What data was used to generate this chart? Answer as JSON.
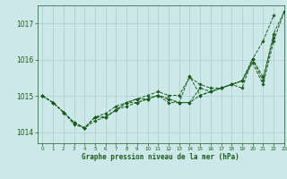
{
  "title": "Graphe pression niveau de la mer (hPa)",
  "background_color": "#cce8e8",
  "grid_color": "#aacccc",
  "line_color": "#1a5c1a",
  "xlim": [
    -0.5,
    23
  ],
  "ylim": [
    1013.7,
    1017.5
  ],
  "yticks": [
    1014,
    1015,
    1016,
    1017
  ],
  "xticks": [
    0,
    1,
    2,
    3,
    4,
    5,
    6,
    7,
    8,
    9,
    10,
    11,
    12,
    13,
    14,
    15,
    16,
    17,
    18,
    19,
    20,
    21,
    22,
    23
  ],
  "series": [
    [
      1015.0,
      1014.82,
      1014.55,
      1014.27,
      1014.12,
      1014.42,
      1014.42,
      1014.62,
      1014.72,
      1014.82,
      1014.92,
      1015.02,
      1014.92,
      1014.82,
      1015.55,
      1015.02,
      1015.12,
      1015.22,
      1015.32,
      1015.22,
      1016.02,
      1016.52,
      1017.22,
      null
    ],
    [
      1015.0,
      1014.82,
      1014.55,
      1014.27,
      1014.12,
      1014.42,
      1014.42,
      1014.62,
      1014.82,
      1014.92,
      1014.92,
      1015.02,
      1014.82,
      1014.82,
      1014.82,
      1015.22,
      1015.12,
      1015.22,
      1015.32,
      1015.42,
      1015.92,
      1015.32,
      1016.52,
      1017.32
    ],
    [
      1015.0,
      1014.82,
      1014.55,
      1014.27,
      1014.12,
      1014.42,
      1014.52,
      1014.72,
      1014.82,
      1014.92,
      1015.02,
      1015.12,
      1015.02,
      1015.02,
      1015.52,
      1015.32,
      1015.22,
      1015.22,
      1015.32,
      1015.42,
      1016.02,
      1015.52,
      1016.62,
      null
    ],
    [
      1015.0,
      1014.82,
      1014.55,
      1014.22,
      1014.12,
      1014.32,
      1014.42,
      1014.62,
      1014.82,
      1014.82,
      1014.92,
      1015.02,
      1014.92,
      1014.82,
      1014.82,
      1015.02,
      1015.12,
      1015.22,
      1015.32,
      1015.42,
      1016.02,
      1015.42,
      1016.72,
      1017.32
    ]
  ]
}
